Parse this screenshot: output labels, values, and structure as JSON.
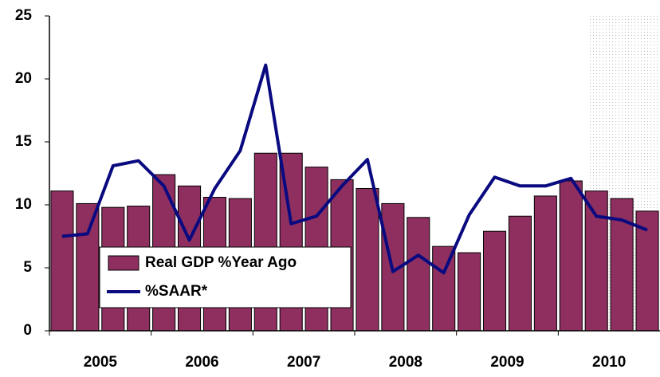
{
  "chart_data": {
    "type": "bar-line",
    "categories": [
      null,
      "2005",
      null,
      null,
      null,
      "2006",
      null,
      null,
      null,
      "2007",
      null,
      null,
      null,
      "2008",
      null,
      null,
      null,
      "2009",
      null,
      null,
      null,
      "2010",
      null,
      null
    ],
    "series": [
      {
        "name": "Real GDP %Year Ago",
        "type": "bar",
        "color": "#8e2f5f",
        "values": [
          11.1,
          10.1,
          9.8,
          9.9,
          12.4,
          11.5,
          10.6,
          10.5,
          14.1,
          14.1,
          13.0,
          12.0,
          11.3,
          10.1,
          9.0,
          6.7,
          6.2,
          7.9,
          9.1,
          10.7,
          11.9,
          11.1,
          10.5,
          9.5
        ]
      },
      {
        "name": "%SAAR*",
        "type": "line",
        "color": "#0a0a80",
        "values": [
          7.5,
          7.7,
          13.1,
          13.5,
          11.5,
          7.2,
          11.3,
          14.3,
          21.1,
          8.5,
          9.1,
          11.5,
          13.6,
          4.7,
          6.0,
          4.6,
          9.2,
          12.2,
          11.5,
          11.5,
          12.1,
          9.1,
          8.8,
          8.0
        ]
      }
    ],
    "ylim": [
      0,
      25
    ],
    "yticks": [
      0,
      5,
      10,
      15,
      20,
      25
    ],
    "grid": false
  }
}
